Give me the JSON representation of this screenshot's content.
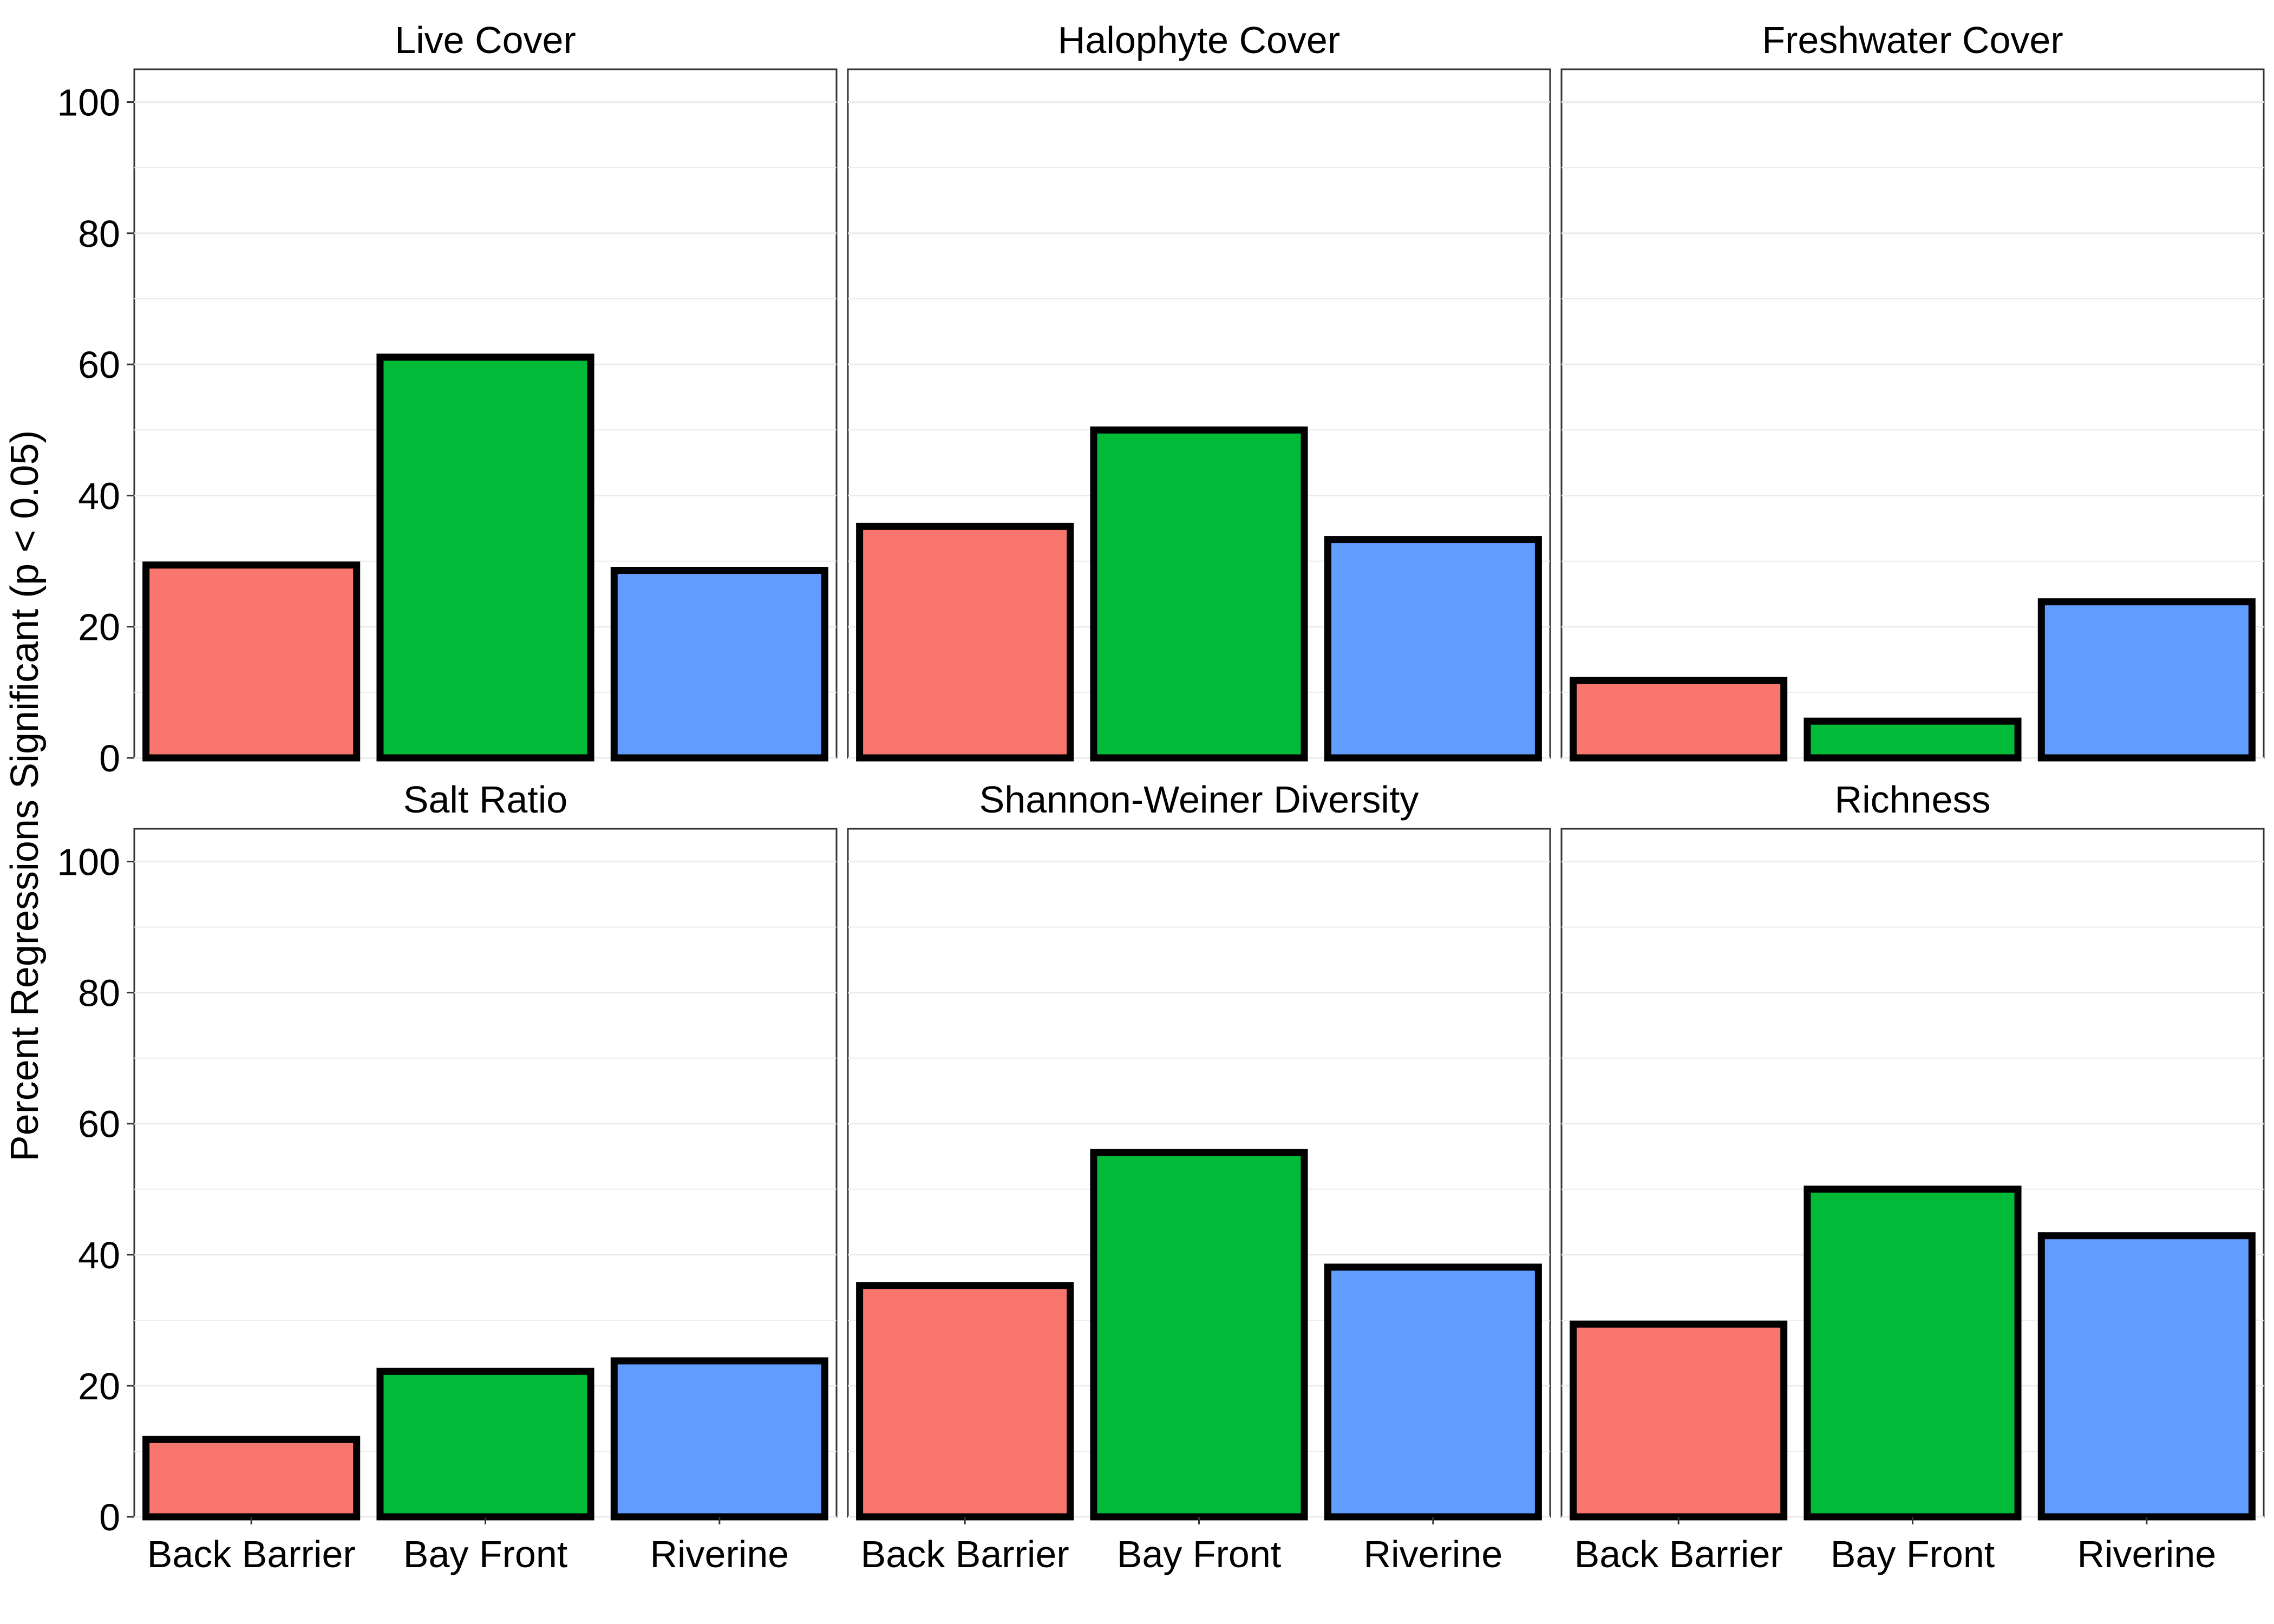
{
  "chart_data": {
    "type": "bar",
    "layout": "facet-grid-2x3",
    "ylabel": "Percent Regressions Significant (p < 0.05)",
    "xlabel": "",
    "ylim": [
      0,
      105
    ],
    "yticks": [
      0,
      20,
      40,
      60,
      80,
      100
    ],
    "grid": true,
    "categories": [
      "Back Barrier",
      "Bay Front",
      "Riverine"
    ],
    "colors": {
      "Back Barrier": "#F8766D",
      "Bay Front": "#00BA38",
      "Riverine": "#619CFF"
    },
    "panels": [
      {
        "title": "Live Cover",
        "values": [
          29.4,
          61.1,
          28.6
        ]
      },
      {
        "title": "Halophyte Cover",
        "values": [
          35.3,
          50.0,
          33.3
        ]
      },
      {
        "title": "Freshwater Cover",
        "values": [
          11.8,
          5.6,
          23.8
        ]
      },
      {
        "title": "Salt Ratio",
        "values": [
          11.8,
          22.2,
          23.8
        ]
      },
      {
        "title": "Shannon-Weiner Diversity",
        "values": [
          35.3,
          55.6,
          38.1
        ]
      },
      {
        "title": "Richness",
        "values": [
          29.4,
          50.0,
          42.9
        ]
      }
    ]
  }
}
